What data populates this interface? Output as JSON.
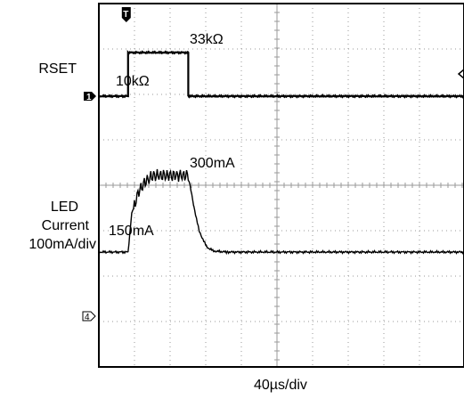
{
  "chart_data": {
    "type": "line",
    "title": "",
    "xlabel": "40µs/div",
    "x_unit": "µs",
    "x_range": [
      0,
      400
    ],
    "grid": true,
    "grid_divisions": {
      "x": 10,
      "y": 8
    },
    "series": [
      {
        "name": "RSET",
        "y_unit": "kΩ",
        "channel_marker": "1",
        "points": [
          [
            0,
            10
          ],
          [
            32,
            10
          ],
          [
            32,
            33
          ],
          [
            98,
            33
          ],
          [
            98,
            10
          ],
          [
            400,
            10
          ]
        ],
        "annotations": [
          "10kΩ",
          "33kΩ"
        ]
      },
      {
        "name": "LED Current",
        "scale": "100mA/div",
        "y_unit": "mA",
        "channel_marker": "4",
        "points": [
          [
            0,
            150
          ],
          [
            32,
            150
          ],
          [
            36,
            225
          ],
          [
            44,
            270
          ],
          [
            52,
            290
          ],
          [
            60,
            300
          ],
          [
            98,
            300
          ],
          [
            104,
            240
          ],
          [
            110,
            190
          ],
          [
            118,
            160
          ],
          [
            126,
            152
          ],
          [
            140,
            150
          ],
          [
            400,
            150
          ]
        ],
        "annotations": [
          "150mA",
          "300mA"
        ]
      }
    ],
    "trigger_marker": "T"
  },
  "labels": {
    "rset": "RSET",
    "rset_low": "10kΩ",
    "rset_high": "33kΩ",
    "led_line1": "LED",
    "led_line2": "Current",
    "led_scale": "100mA/div",
    "led_low": "150mA",
    "led_high": "300mA",
    "timebase": "40µs/div",
    "ch1": "1",
    "ch4": "4",
    "trigger": "T"
  },
  "colors": {
    "trace": "#000000",
    "grid": "#9a9a9a",
    "background": "#ffffff"
  }
}
